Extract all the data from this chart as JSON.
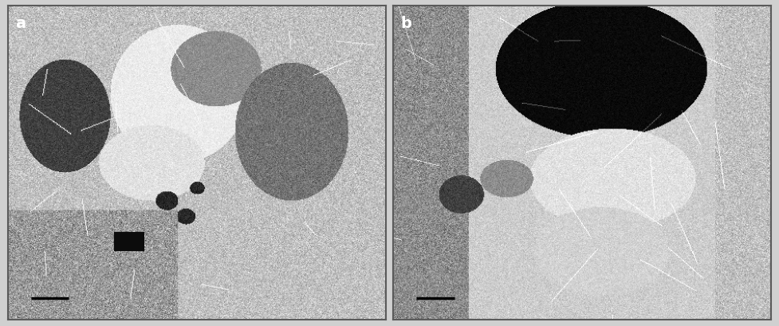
{
  "figure_width": 9.77,
  "figure_height": 4.1,
  "dpi": 100,
  "panel_a_label": "a",
  "panel_b_label": "b",
  "label_fontsize": 14,
  "label_fontweight": "bold",
  "background_color": "#e8e8e8",
  "border_color": "#5a5a5a",
  "outer_bg": "#cccccc",
  "scale_bar_color": "#000000",
  "scale_bar_width": 0.035,
  "scale_bar_height": 0.006
}
